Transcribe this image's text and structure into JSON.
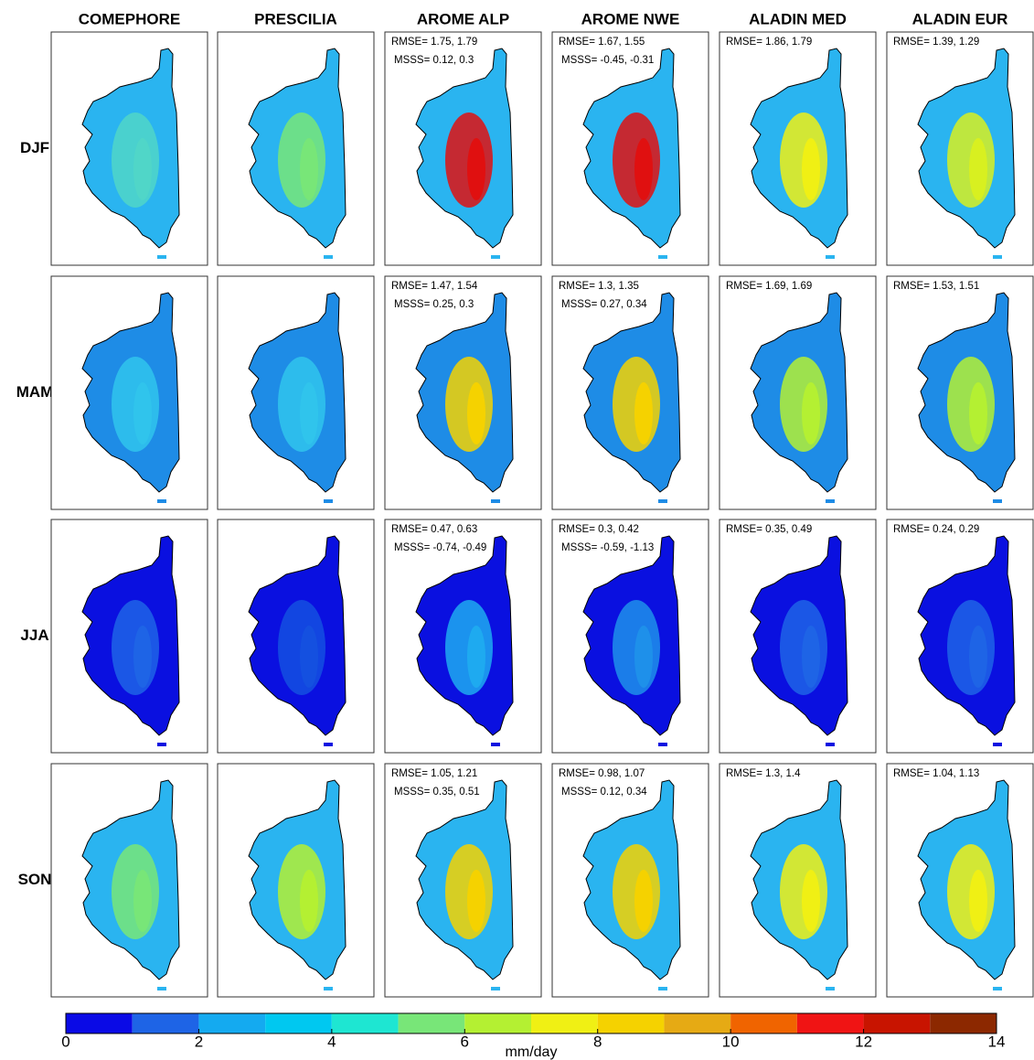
{
  "columns": [
    "COMEPHORE",
    "PRESCILIA",
    "AROME ALP",
    "AROME NWE",
    "ALADIN MED",
    "ALADIN EUR"
  ],
  "rows": [
    {
      "label": "DJF",
      "scores": [
        {
          "rmse": "RMSE= 1.75, 1.79",
          "msss": "MSSS= 0.12, 0.3"
        },
        {
          "rmse": "RMSE= 1.67, 1.55",
          "msss": "MSSS= -0.45, -0.31"
        },
        {
          "rmse": "RMSE= 1.86, 1.79"
        },
        {
          "rmse": "RMSE= 1.39, 1.29"
        }
      ]
    },
    {
      "label": "MAM",
      "scores": [
        {
          "rmse": "RMSE= 1.47, 1.54",
          "msss": "MSSS= 0.25, 0.3"
        },
        {
          "rmse": "RMSE= 1.3, 1.35",
          "msss": "MSSS= 0.27, 0.34"
        },
        {
          "rmse": "RMSE= 1.69, 1.69"
        },
        {
          "rmse": "RMSE= 1.53, 1.51"
        }
      ]
    },
    {
      "label": "JJA",
      "scores": [
        {
          "rmse": "RMSE= 0.47, 0.63",
          "msss": "MSSS= -0.74, -0.49"
        },
        {
          "rmse": "RMSE= 0.3, 0.42",
          "msss": "MSSS= -0.59, -1.13"
        },
        {
          "rmse": "RMSE= 0.35, 0.49"
        },
        {
          "rmse": "RMSE= 0.24, 0.29"
        }
      ]
    },
    {
      "label": "SON",
      "scores": [
        {
          "rmse": "RMSE= 1.05, 1.21",
          "msss": "MSSS= 0.35, 0.51"
        },
        {
          "rmse": "RMSE= 0.98, 1.07",
          "msss": "MSSS= 0.12, 0.34"
        },
        {
          "rmse": "RMSE= 1.3, 1.4"
        },
        {
          "rmse": "RMSE= 1.04, 1.13"
        }
      ]
    }
  ],
  "colorbar": {
    "label": "mm/day",
    "lim": [
      0,
      14
    ],
    "ticks": [
      0,
      2,
      4,
      6,
      8,
      10,
      12,
      14
    ],
    "colors": [
      "#0a0ae6",
      "#1e64e6",
      "#14aaf0",
      "#00c8f0",
      "#1ee6d2",
      "#78e678",
      "#b4f032",
      "#f0f014",
      "#f5d200",
      "#e6aa14",
      "#f06400",
      "#f01414",
      "#c81400",
      "#8c2800"
    ]
  }
}
